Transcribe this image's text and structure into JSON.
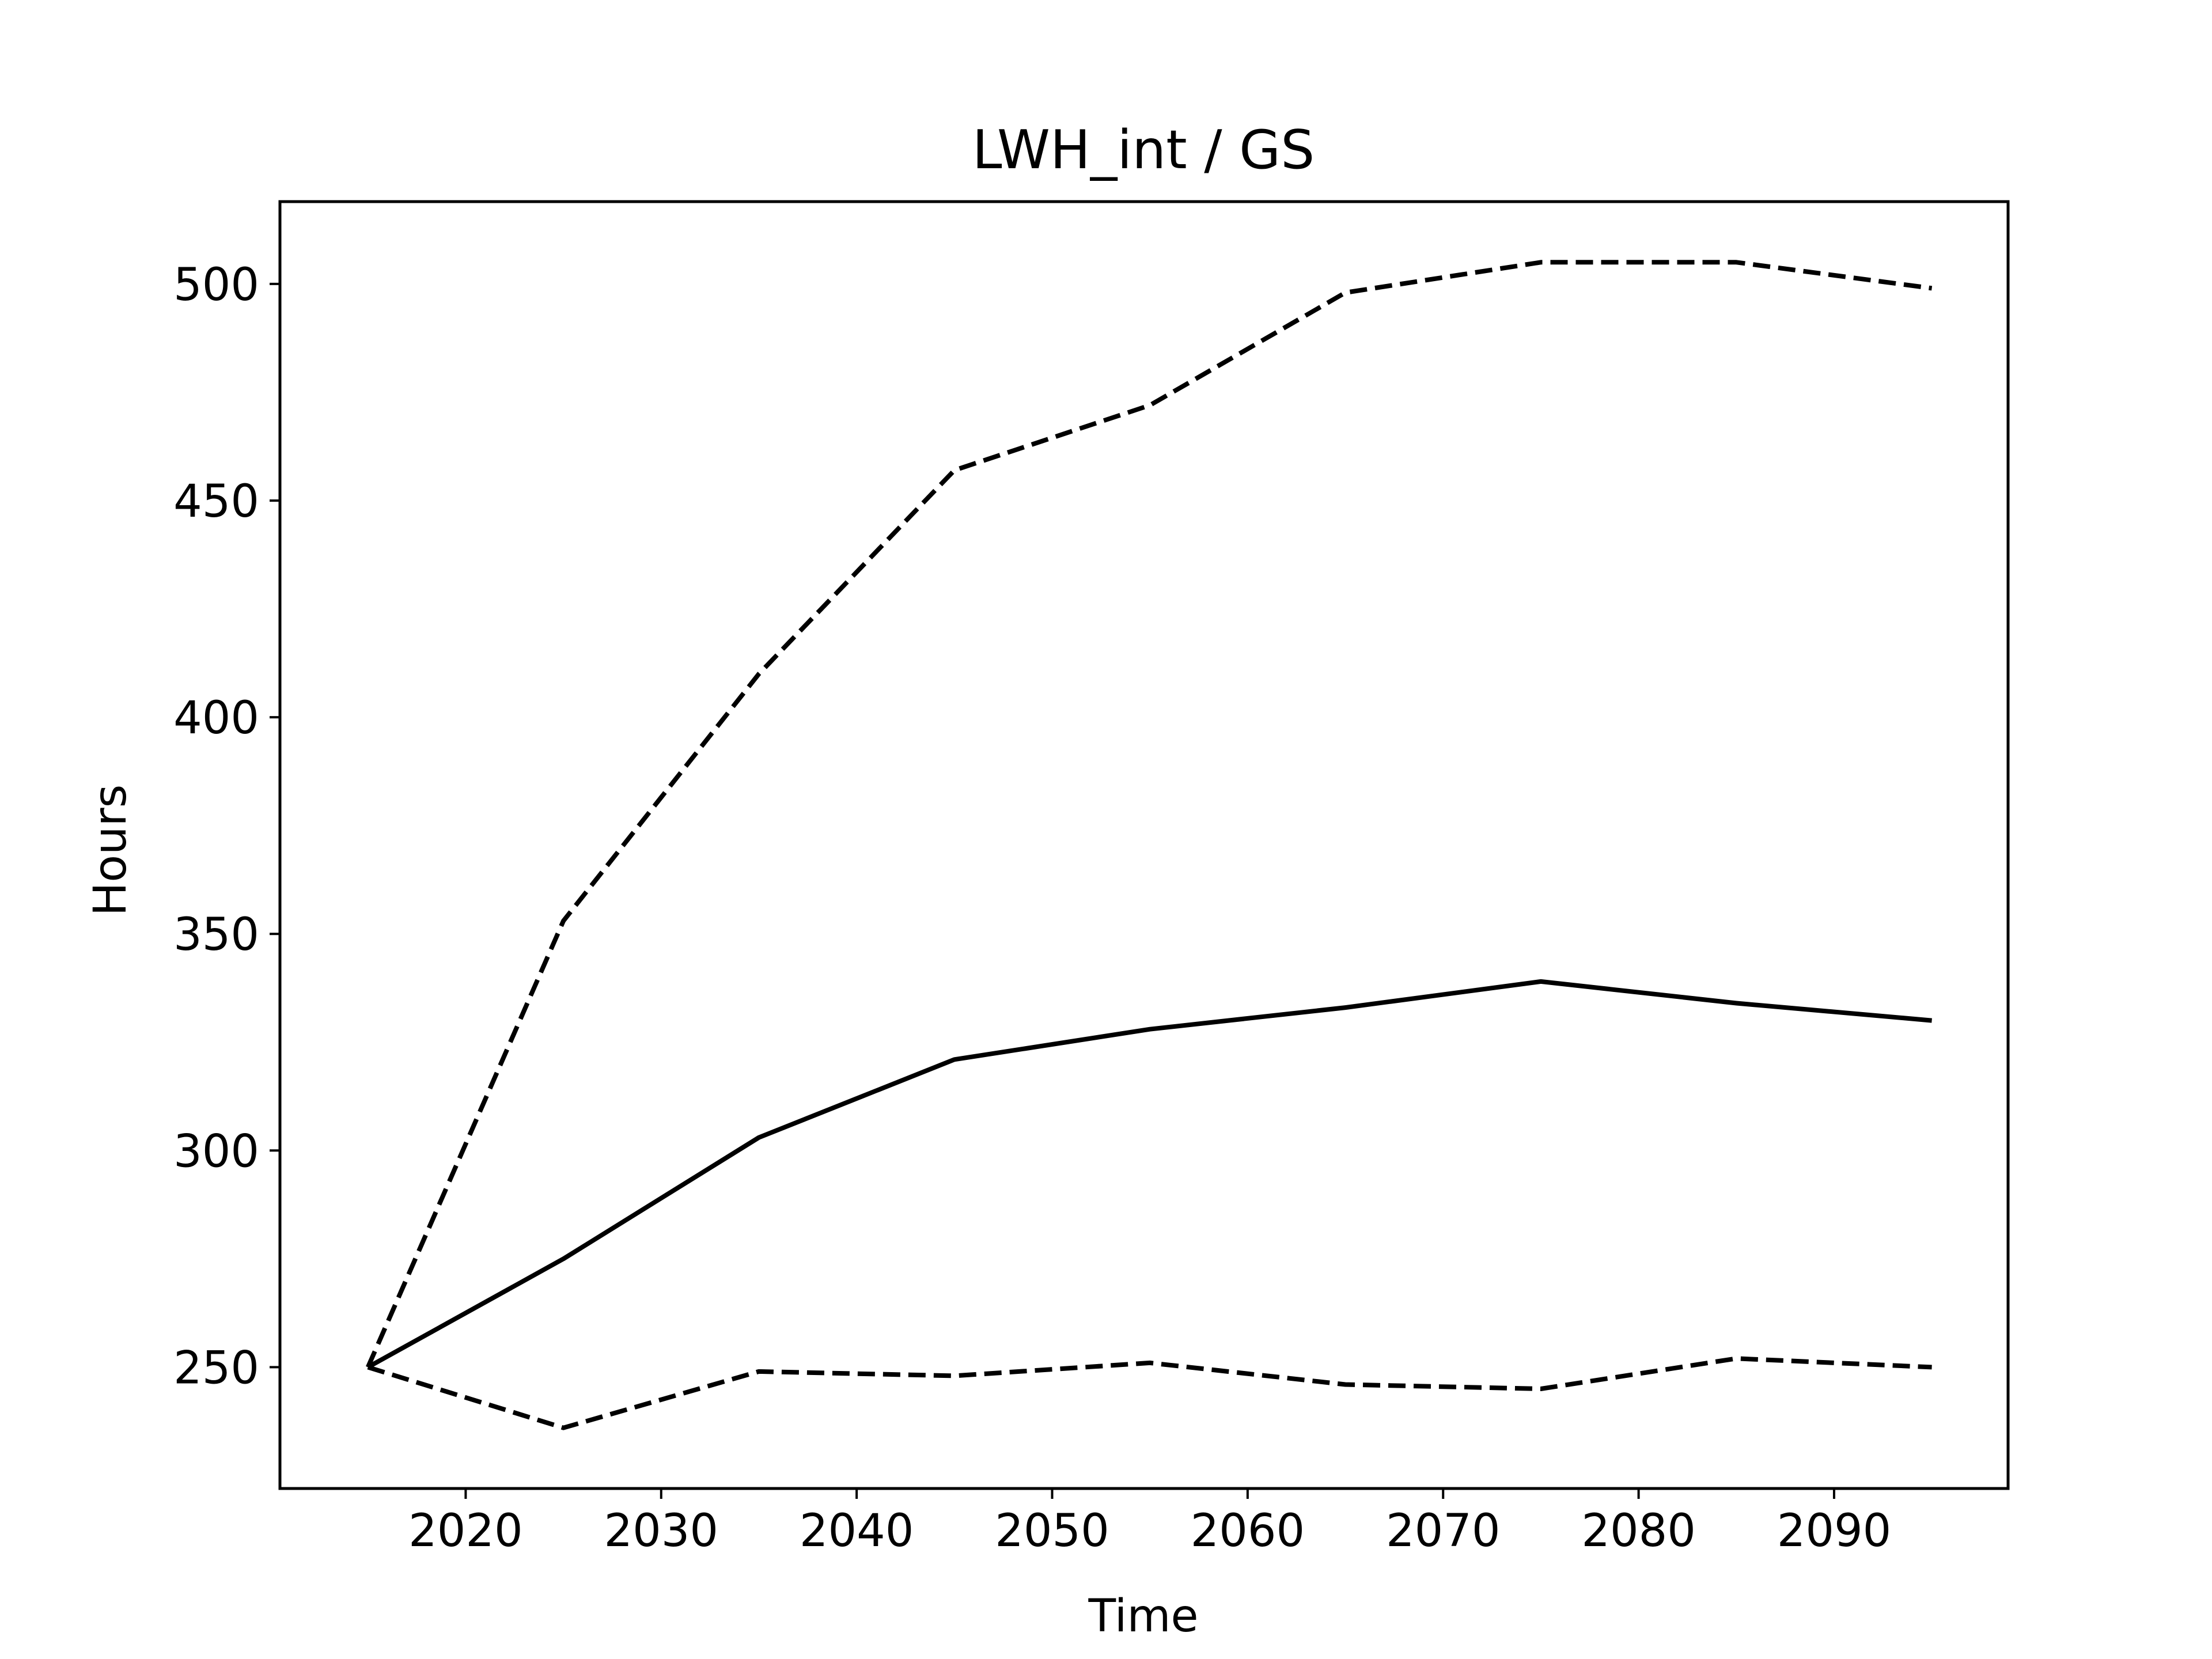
{
  "chart_data": {
    "type": "line",
    "title": "LWH_int / GS",
    "xlabel": "Time",
    "ylabel": "Hours",
    "xlim": [
      2010.5,
      2098.9
    ],
    "ylim": [
      222,
      519
    ],
    "xticks": [
      2020,
      2030,
      2040,
      2050,
      2060,
      2070,
      2080,
      2090
    ],
    "yticks": [
      250,
      300,
      350,
      400,
      450,
      500
    ],
    "grid": false,
    "x": [
      2015,
      2025,
      2035,
      2045,
      2055,
      2065,
      2075,
      2085,
      2095
    ],
    "series": [
      {
        "style": "dashed",
        "color": "#000000",
        "values": [
          250,
          353,
          410,
          457,
          472,
          498,
          505,
          505,
          499
        ]
      },
      {
        "style": "solid",
        "color": "#000000",
        "values": [
          250,
          275,
          303,
          321,
          328,
          333,
          339,
          334,
          330
        ]
      },
      {
        "style": "dashed",
        "color": "#000000",
        "values": [
          250,
          236,
          249,
          248,
          251,
          246,
          245,
          252,
          250
        ]
      }
    ]
  }
}
